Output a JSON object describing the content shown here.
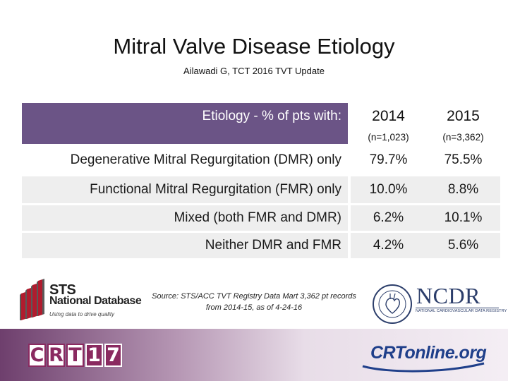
{
  "title": "Mitral Valve Disease Etiology",
  "subtitle": "Ailawadi G, TCT 2016 TVT Update",
  "table": {
    "header_label": "Etiology - % of pts with:",
    "columns": [
      {
        "year": "2014",
        "n": "(n=1,023)"
      },
      {
        "year": "2015",
        "n": "(n=3,362)"
      }
    ],
    "rows": [
      {
        "label": "Degenerative Mitral Regurgitation (DMR) only",
        "v2014": "79.7%",
        "v2015": "75.5%"
      },
      {
        "label": "Functional Mitral Regurgitation (FMR) only",
        "v2014": "10.0%",
        "v2015": "8.8%"
      },
      {
        "label": "Mixed (both FMR and DMR)",
        "v2014": "6.2%",
        "v2015": "10.1%"
      },
      {
        "label": "Neither DMR and FMR",
        "v2014": "4.2%",
        "v2015": "5.6%"
      }
    ]
  },
  "source": "Source: STS/ACC TVT Registry Data Mart 3,362 pt records from 2014-15, as of 4-24-16",
  "logos": {
    "sts_line1": "STS",
    "sts_line2": "National Database",
    "sts_tagline": "Using data to drive quality",
    "ncdr": "NCDR",
    "ncdr_sub": "NATIONAL CARDIOVASCULAR DATA REGISTRY",
    "crt_letters": [
      "C",
      "R",
      "T"
    ],
    "crt_year": [
      "1",
      "7"
    ],
    "crtonline": "CRTonline.org"
  },
  "colors": {
    "header_bg": "#6b5486",
    "row_shade": "#eeeeee",
    "crt_brand": "#8a2a60",
    "crtonline_blue": "#1f3f8a",
    "ncdr_blue": "#2c3e6b"
  }
}
